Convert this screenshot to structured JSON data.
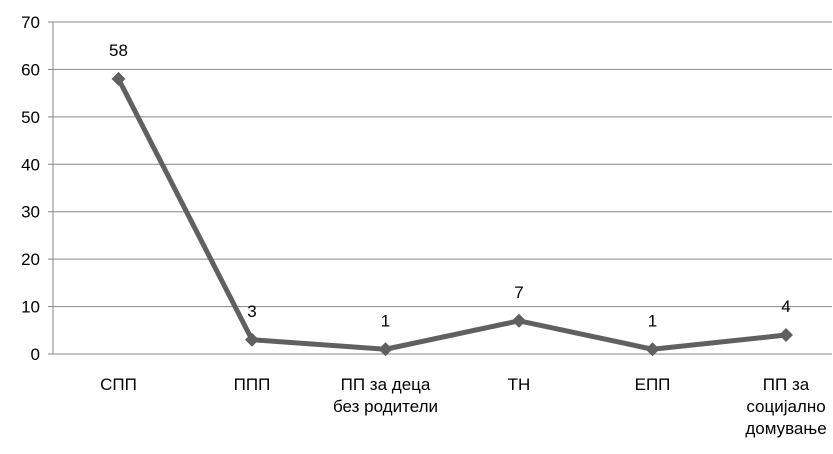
{
  "chart_data": {
    "type": "line",
    "title": "",
    "xlabel": "",
    "ylabel": "",
    "categories": [
      "СПП",
      "ППП",
      "ПП за деца без родители",
      "ТН",
      "ЕПП",
      "ПП за социјално домување"
    ],
    "category_label_lines": [
      [
        "СПП"
      ],
      [
        "ППП"
      ],
      [
        "ПП за деца",
        "без родители"
      ],
      [
        "ТН"
      ],
      [
        "ЕПП"
      ],
      [
        "ПП за",
        "социјално",
        "домување"
      ]
    ],
    "series": [
      {
        "values": [
          58,
          3,
          1,
          7,
          1,
          4
        ],
        "data_labels": [
          "58",
          "3",
          "1",
          "7",
          "1",
          "4"
        ]
      }
    ],
    "ylim": [
      0,
      70
    ],
    "yticks": [
      0,
      10,
      20,
      30,
      40,
      50,
      60,
      70
    ],
    "ytick_labels": [
      "0",
      "10",
      "20",
      "30",
      "40",
      "50",
      "60",
      "70"
    ],
    "grid": true,
    "legend": "none",
    "colors": {
      "line": "#606060",
      "marker": "#606060",
      "grid": "#868686",
      "axis": "#868686",
      "text": "#000000"
    },
    "marker": "diamond"
  }
}
